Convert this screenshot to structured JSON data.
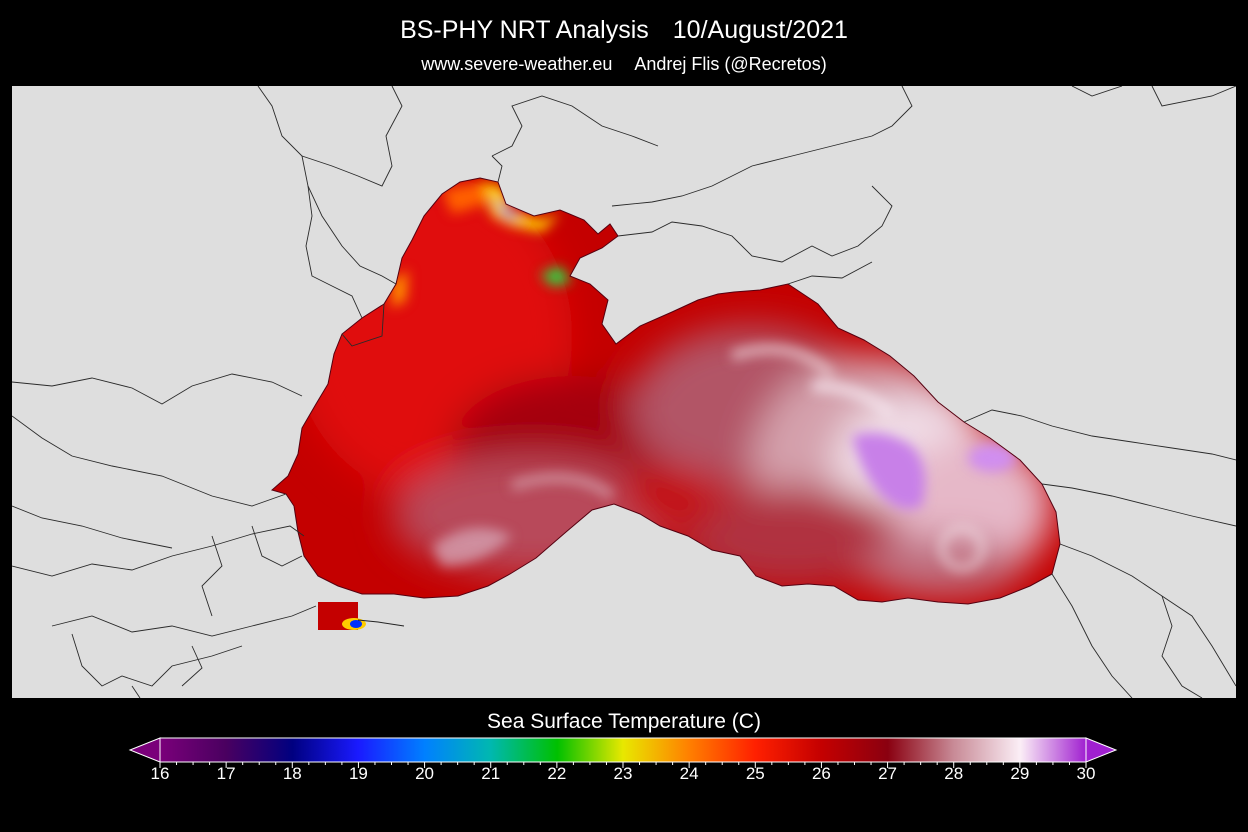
{
  "header": {
    "title_left": "BS-PHY NRT Analysis",
    "title_right": "10/August/2021",
    "subtitle_left": "www.severe-weather.eu",
    "subtitle_right": "Andrej Flis (@Recretos)"
  },
  "map": {
    "region": "Black Sea",
    "land_color": "#dedede",
    "border_color": "#222222"
  },
  "colorbar": {
    "label": "Sea Surface Temperature (C)",
    "min": 16,
    "max": 30,
    "ticks": [
      "16",
      "17",
      "18",
      "19",
      "20",
      "21",
      "22",
      "23",
      "24",
      "25",
      "26",
      "27",
      "28",
      "29",
      "30"
    ],
    "colors": {
      "16": "#7a007a",
      "17": "#4a0060",
      "18": "#000080",
      "19": "#1a1aff",
      "20": "#0080ff",
      "21": "#00b8b0",
      "22": "#00c000",
      "23": "#e8e800",
      "24": "#ff8000",
      "25": "#ff2000",
      "26": "#c40000",
      "27": "#8a0010",
      "28": "#c88a96",
      "29": "#fbeef6",
      "30": "#a020d0"
    }
  }
}
